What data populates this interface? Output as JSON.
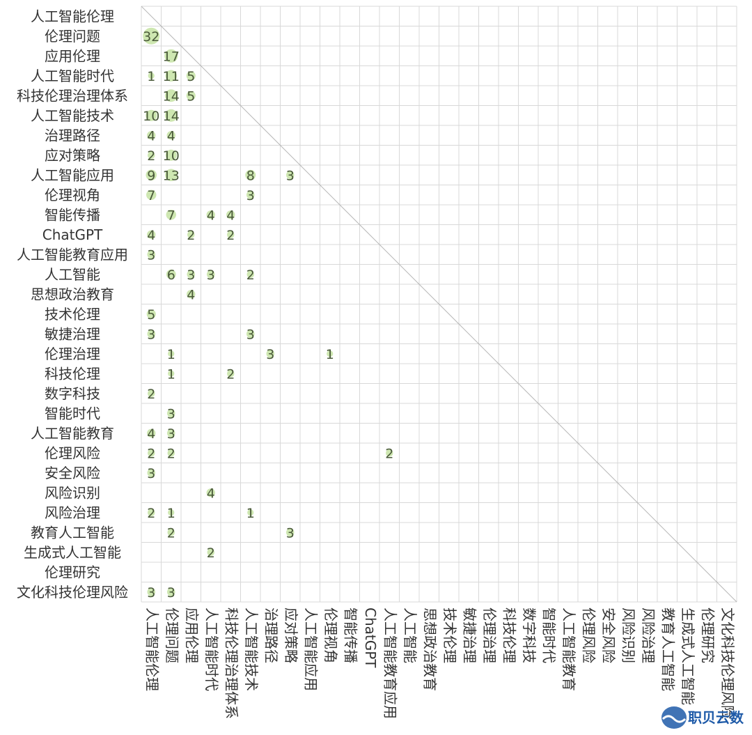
{
  "chart_data": {
    "type": "heatmap",
    "title": "",
    "xlabel": "",
    "ylabel": "",
    "row_labels": [
      "人工智能伦理",
      "伦理问题",
      "应用伦理",
      "人工智能时代",
      "科技伦理治理体系",
      "人工智能技术",
      "治理路径",
      "应对策略",
      "人工智能应用",
      "伦理视角",
      "智能传播",
      "ChatGPT",
      "人工智能教育应用",
      "人工智能",
      "思想政治教育",
      "技术伦理",
      "敏捷治理",
      "伦理治理",
      "科技伦理",
      "数字科技",
      "智能时代",
      "人工智能教育",
      "伦理风险",
      "安全风险",
      "风险识别",
      "风险治理",
      "教育人工智能",
      "生成式人工智能",
      "伦理研究",
      "文化科技伦理风险"
    ],
    "col_labels": [
      "人工智能伦理",
      "伦理问题",
      "应用伦理",
      "人工智能时代",
      "科技伦理治理体系",
      "人工智能技术",
      "治理路径",
      "应对策略",
      "人工智能应用",
      "伦理视角",
      "智能传播",
      "ChatGPT",
      "人工智能教育应用",
      "人工智能",
      "思想政治教育",
      "技术伦理",
      "敏捷治理",
      "伦理治理",
      "科技伦理",
      "数字科技",
      "智能时代",
      "人工智能教育",
      "伦理风险",
      "安全风险",
      "风险识别",
      "风险治理",
      "教育人工智能",
      "生成式人工智能",
      "伦理研究",
      "文化科技伦理风险"
    ],
    "cells": [
      [
        1,
        0,
        32
      ],
      [
        2,
        1,
        17
      ],
      [
        3,
        0,
        1
      ],
      [
        3,
        1,
        11
      ],
      [
        3,
        2,
        5
      ],
      [
        4,
        1,
        14
      ],
      [
        4,
        2,
        5
      ],
      [
        5,
        0,
        10
      ],
      [
        5,
        1,
        14
      ],
      [
        6,
        0,
        4
      ],
      [
        6,
        1,
        4
      ],
      [
        7,
        0,
        2
      ],
      [
        7,
        1,
        10
      ],
      [
        8,
        0,
        9
      ],
      [
        8,
        1,
        13
      ],
      [
        8,
        5,
        8
      ],
      [
        8,
        7,
        3
      ],
      [
        9,
        0,
        7
      ],
      [
        9,
        5,
        3
      ],
      [
        10,
        1,
        7
      ],
      [
        10,
        3,
        4
      ],
      [
        10,
        4,
        4
      ],
      [
        11,
        0,
        4
      ],
      [
        11,
        2,
        2
      ],
      [
        11,
        4,
        2
      ],
      [
        12,
        0,
        3
      ],
      [
        13,
        1,
        6
      ],
      [
        13,
        2,
        3
      ],
      [
        13,
        3,
        3
      ],
      [
        13,
        5,
        2
      ],
      [
        14,
        2,
        4
      ],
      [
        15,
        0,
        5
      ],
      [
        16,
        0,
        3
      ],
      [
        16,
        5,
        3
      ],
      [
        17,
        1,
        1
      ],
      [
        17,
        6,
        3
      ],
      [
        17,
        9,
        1
      ],
      [
        18,
        1,
        1
      ],
      [
        18,
        4,
        2
      ],
      [
        19,
        0,
        2
      ],
      [
        20,
        1,
        3
      ],
      [
        21,
        0,
        4
      ],
      [
        21,
        1,
        3
      ],
      [
        22,
        0,
        2
      ],
      [
        22,
        1,
        2
      ],
      [
        22,
        12,
        2
      ],
      [
        23,
        0,
        3
      ],
      [
        24,
        3,
        4
      ],
      [
        25,
        0,
        2
      ],
      [
        25,
        1,
        1
      ],
      [
        25,
        5,
        1
      ],
      [
        26,
        1,
        2
      ],
      [
        26,
        7,
        3
      ],
      [
        27,
        3,
        2
      ],
      [
        29,
        0,
        3
      ],
      [
        29,
        1,
        3
      ]
    ],
    "max_value": 32,
    "colors": {
      "grid": "#d8d8d8",
      "diagonal": "#b8b8b8",
      "text": "#333333",
      "cell_text": "#4a5a3a",
      "bubble": "#c5e3a3"
    }
  },
  "watermark": {
    "text": "职贝云数"
  }
}
